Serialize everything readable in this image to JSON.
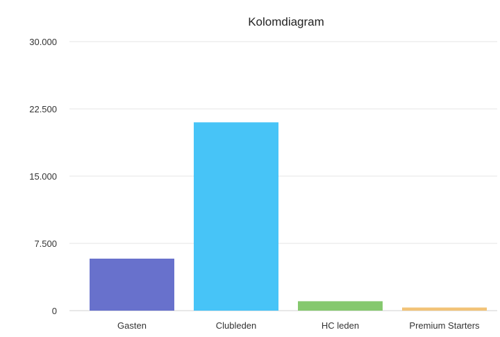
{
  "chart_data": {
    "type": "bar",
    "title": "Kolomdiagram",
    "categories": [
      "Gasten",
      "Clubleden",
      "HC leden",
      "Premium Starters"
    ],
    "values": [
      5800,
      21000,
      1050,
      350
    ],
    "colors": [
      "#6871cc",
      "#47c4f7",
      "#85c86e",
      "#f2c378"
    ],
    "ylim": [
      0,
      30000
    ],
    "yticks": [
      {
        "value": 0,
        "label": "0"
      },
      {
        "value": 7500,
        "label": "7.500"
      },
      {
        "value": 15000,
        "label": "15.000"
      },
      {
        "value": 22500,
        "label": "22.500"
      },
      {
        "value": 30000,
        "label": "30.000"
      }
    ],
    "grid": true,
    "legend": "none"
  }
}
